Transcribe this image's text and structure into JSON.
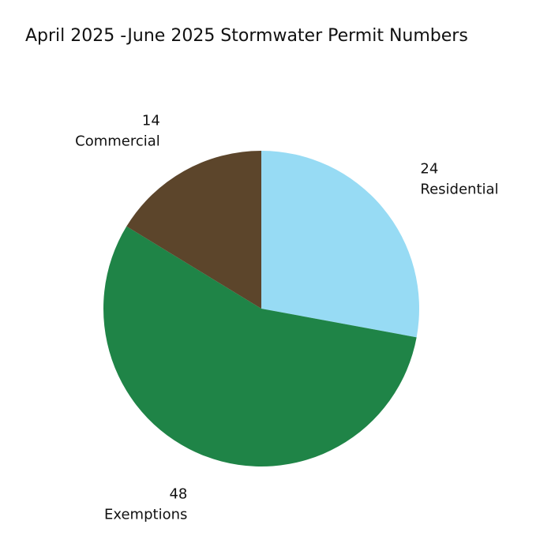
{
  "chart_data": {
    "type": "pie",
    "title": "April 2025 -June 2025 Stormwater Permit Numbers",
    "slices": [
      {
        "label": "Residential",
        "value": 24,
        "color": "#97dbf4"
      },
      {
        "label": "Exemptions",
        "value": 48,
        "color": "#1f8447"
      },
      {
        "label": "Commercial",
        "value": 14,
        "color": "#5c452b"
      }
    ],
    "start_angle_deg": 0,
    "direction": "clockwise",
    "legend": "none",
    "labels": "outside-slices"
  }
}
